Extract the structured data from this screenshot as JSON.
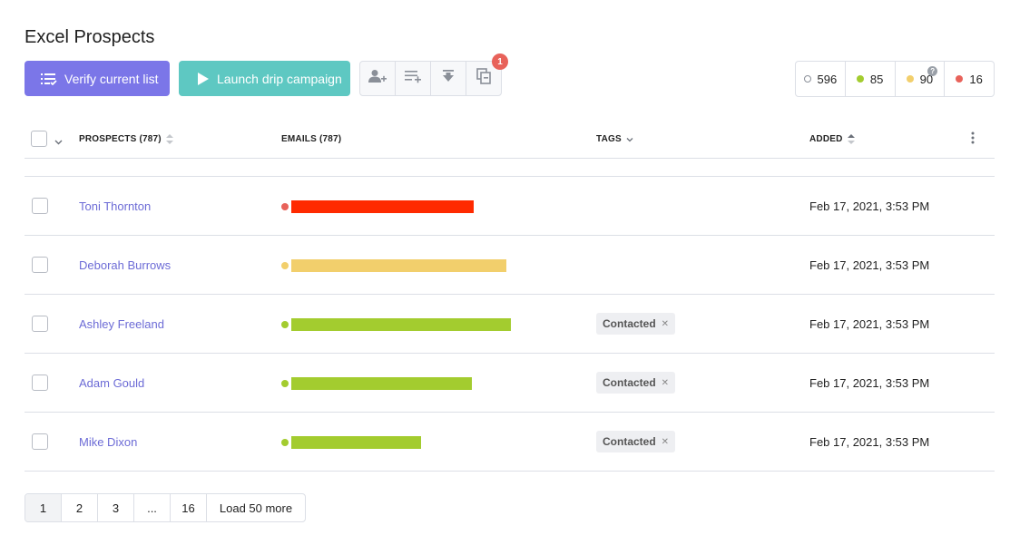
{
  "title": "Excel Prospects",
  "toolbar": {
    "verify_label": "Verify current list",
    "launch_label": "Launch drip campaign",
    "icon_buttons": [
      "add-user-icon",
      "add-to-list-icon",
      "download-icon",
      "copy-icon"
    ],
    "notification_count": "1"
  },
  "stats": {
    "total": {
      "value": "596",
      "color": "#9aa0a8"
    },
    "valid": {
      "value": "85",
      "color": "#a3cc2f"
    },
    "risky": {
      "value": "90",
      "color": "#f2cf6c"
    },
    "invalid": {
      "value": "16",
      "color": "#e8625a"
    },
    "help": "?"
  },
  "table": {
    "columns": {
      "prospects": "PROSPECTS (787)",
      "emails": "EMAILS (787)",
      "tags": "TAGS",
      "added": "ADDED"
    },
    "rows": [
      {
        "name": "Toni Thornton",
        "email_status_color": "#e8625a",
        "email_bar_color": "#ff2a00",
        "email_bar_fraction": 0.79,
        "tag": "",
        "added": "Feb 17, 2021, 3:53 PM"
      },
      {
        "name": "Deborah Burrows",
        "email_status_color": "#f2cf6c",
        "email_bar_color": "#f2cf6c",
        "email_bar_fraction": 0.93,
        "tag": "",
        "added": "Feb 17, 2021, 3:53 PM"
      },
      {
        "name": "Ashley Freeland",
        "email_status_color": "#a3cc2f",
        "email_bar_color": "#a3cc2f",
        "email_bar_fraction": 0.95,
        "tag": "Contacted",
        "added": "Feb 17, 2021, 3:53 PM"
      },
      {
        "name": "Adam Gould",
        "email_status_color": "#a3cc2f",
        "email_bar_color": "#a3cc2f",
        "email_bar_fraction": 0.78,
        "tag": "Contacted",
        "added": "Feb 17, 2021, 3:53 PM"
      },
      {
        "name": "Mike Dixon",
        "email_status_color": "#a3cc2f",
        "email_bar_color": "#a3cc2f",
        "email_bar_fraction": 0.56,
        "tag": "Contacted",
        "added": "Feb 17, 2021, 3:53 PM"
      }
    ]
  },
  "pagination": {
    "pages": [
      "1",
      "2",
      "3",
      "...",
      "16"
    ],
    "current": "1",
    "load_more": "Load 50 more"
  },
  "colors": {
    "primary": "#7b76e8",
    "teal": "#5ec8c2",
    "link": "#6c6bd6"
  }
}
